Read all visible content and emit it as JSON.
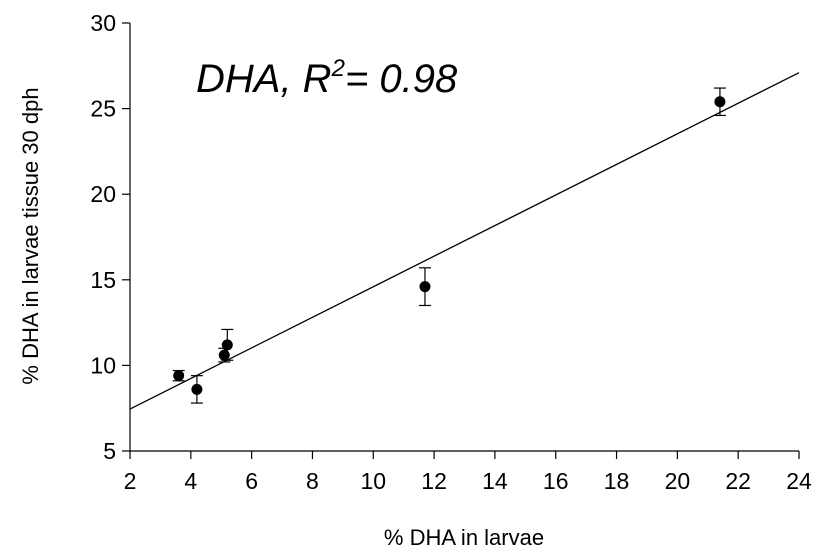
{
  "chart_data": {
    "type": "scatter",
    "title": "",
    "xlabel": "% DHA in larvae",
    "ylabel": "% DHA in larvae tissue 30 dph",
    "xlim": [
      2,
      24
    ],
    "ylim": [
      5,
      30
    ],
    "xticks": [
      2,
      4,
      6,
      8,
      10,
      12,
      14,
      16,
      18,
      20,
      22,
      24
    ],
    "yticks": [
      5,
      10,
      15,
      20,
      25,
      30
    ],
    "grid": false,
    "legend": "none",
    "annotation": {
      "prefix": "DHA, R",
      "superscript": "2",
      "suffix": "= 0.98"
    },
    "points": [
      {
        "x": 3.6,
        "y": 9.4,
        "err": 0.3
      },
      {
        "x": 4.2,
        "y": 8.6,
        "err": 0.8
      },
      {
        "x": 5.1,
        "y": 10.6,
        "err": 0.4
      },
      {
        "x": 5.2,
        "y": 11.2,
        "err": 0.9
      },
      {
        "x": 11.7,
        "y": 14.6,
        "err": 1.1
      },
      {
        "x": 21.4,
        "y": 25.4,
        "err": 0.8
      }
    ],
    "trendline": {
      "x1": 2,
      "y1": 7.45,
      "x2": 24,
      "y2": 27.1
    }
  }
}
